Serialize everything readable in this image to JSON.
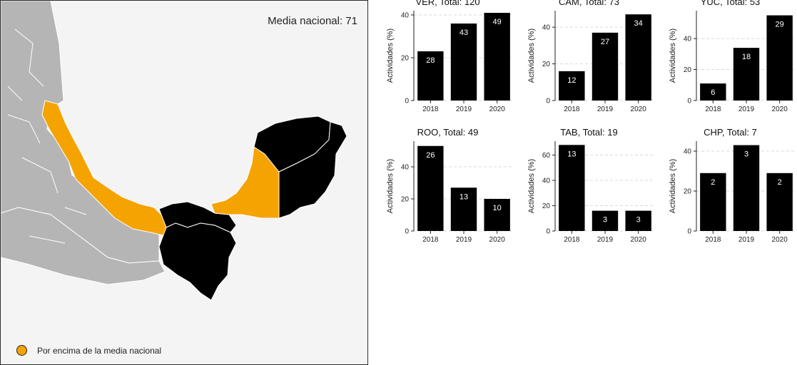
{
  "map": {
    "national_average_text": "Media nacional: 71",
    "legend_label": "Por encima de la media nacional",
    "colors": {
      "above_average": "#f5a300",
      "below_average": "#000000",
      "other_states": "#b5b5b5",
      "background": "#f4f4f4"
    },
    "states_above_average": [
      "VER",
      "CAM"
    ],
    "states_below_average": [
      "YUC",
      "QROO",
      "TAB",
      "CHP"
    ]
  },
  "chart_data": [
    {
      "type": "bar",
      "title": "VER, Total: 120",
      "ylabel": "Actividades (%)",
      "categories": [
        "2018",
        "2019",
        "2020"
      ],
      "values": [
        23,
        36,
        41
      ],
      "labels": [
        "28",
        "43",
        "49"
      ],
      "ylim": [
        0,
        42
      ],
      "yticks": [
        0,
        20,
        40
      ],
      "grid": true
    },
    {
      "type": "bar",
      "title": "CAM, Total: 73",
      "ylabel": "Actividades (%)",
      "categories": [
        "2018",
        "2019",
        "2020"
      ],
      "values": [
        16,
        37,
        47
      ],
      "labels": [
        "12",
        "27",
        "34"
      ],
      "ylim": [
        0,
        49
      ],
      "yticks": [
        0,
        20,
        40
      ],
      "grid": true
    },
    {
      "type": "bar",
      "title": "YUC, Total: 53",
      "ylabel": "Actividades (%)",
      "categories": [
        "2018",
        "2019",
        "2020"
      ],
      "values": [
        11,
        34,
        55
      ],
      "labels": [
        "6",
        "18",
        "29"
      ],
      "ylim": [
        0,
        58
      ],
      "yticks": [
        0,
        20,
        40
      ],
      "grid": true
    },
    {
      "type": "bar",
      "title": "ROO, Total: 49",
      "ylabel": "Actividades (%)",
      "categories": [
        "2018",
        "2019",
        "2020"
      ],
      "values": [
        53,
        27,
        20
      ],
      "labels": [
        "26",
        "13",
        "10"
      ],
      "ylim": [
        0,
        56
      ],
      "yticks": [
        0,
        20,
        40
      ],
      "grid": true
    },
    {
      "type": "bar",
      "title": "TAB, Total: 19",
      "ylabel": "Actividades (%)",
      "categories": [
        "2018",
        "2019",
        "2020"
      ],
      "values": [
        68,
        16,
        16
      ],
      "labels": [
        "13",
        "3",
        "3"
      ],
      "ylim": [
        0,
        71
      ],
      "yticks": [
        0,
        20,
        40,
        60
      ],
      "grid": true
    },
    {
      "type": "bar",
      "title": "CHP, Total: 7",
      "ylabel": "Actividades (%)",
      "categories": [
        "2018",
        "2019",
        "2020"
      ],
      "values": [
        29,
        43,
        29
      ],
      "labels": [
        "2",
        "3",
        "2"
      ],
      "ylim": [
        0,
        45
      ],
      "yticks": [
        0,
        20,
        40
      ],
      "grid": true
    }
  ]
}
